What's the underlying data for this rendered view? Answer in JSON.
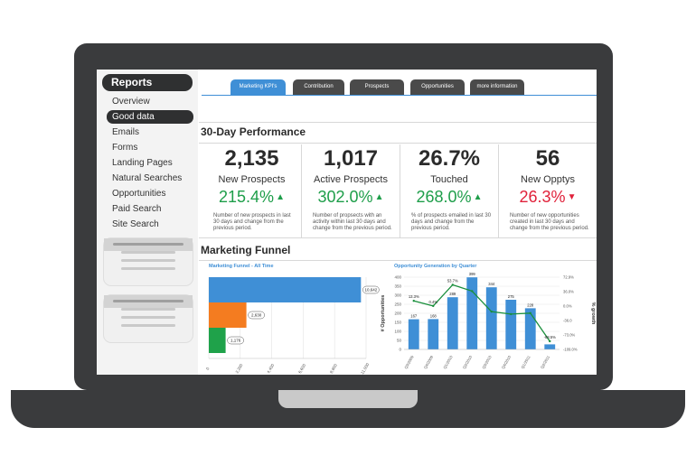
{
  "sidebar": {
    "title": "Reports",
    "items": [
      {
        "label": "Overview",
        "active": false
      },
      {
        "label": "Good data",
        "active": true
      },
      {
        "label": "Emails",
        "active": false
      },
      {
        "label": "Forms",
        "active": false
      },
      {
        "label": "Landing Pages",
        "active": false
      },
      {
        "label": "Natural Searches",
        "active": false
      },
      {
        "label": "Opportunities",
        "active": false
      },
      {
        "label": "Paid Search",
        "active": false
      },
      {
        "label": "Site Search",
        "active": false
      }
    ]
  },
  "tabs": [
    {
      "label": "Marketing KPI's",
      "active": true
    },
    {
      "label": "Contribution",
      "active": false
    },
    {
      "label": "Prospects",
      "active": false
    },
    {
      "label": "Opportunities",
      "active": false
    },
    {
      "label": "more information",
      "active": false
    }
  ],
  "performance": {
    "title": "30-Day Performance",
    "kpis": [
      {
        "value": "2,135",
        "label": "New Prospects",
        "change": "215.4%",
        "direction": "up",
        "description": "Number of new prospects in last 30 days and change from the previous period."
      },
      {
        "value": "1,017",
        "label": "Active Prospects",
        "change": "302.0%",
        "direction": "up",
        "description": "Number of propsects with an activity within last 30 days and change from the previous period."
      },
      {
        "value": "26.7%",
        "label": "Touched",
        "change": "268.0%",
        "direction": "up",
        "description": "% of prospects emailed in last 30 days and change from the previous period."
      },
      {
        "value": "56",
        "label": "New Opptys",
        "change": "26.3%",
        "direction": "down",
        "description": "Number of new opportunities created in last 30 days and change from the previous period."
      }
    ]
  },
  "funnel": {
    "title": "Marketing Funnel"
  },
  "colors": {
    "accent_blue": "#3f8fd6",
    "up_green": "#1e9e4a",
    "down_red": "#e0213a",
    "funnel_orange": "#f47c20",
    "funnel_green": "#1fa24a",
    "dark": "#2f3031"
  },
  "chart_data": [
    {
      "type": "bar",
      "orientation": "horizontal",
      "title": "Marketing Funnel - All Time",
      "values": [
        10642,
        2630,
        1176
      ],
      "value_labels": [
        "10,642",
        "2,630",
        "1,176"
      ],
      "colors": [
        "#3f8fd6",
        "#f47c20",
        "#1fa24a"
      ],
      "xlim": [
        0,
        11000
      ],
      "xticks": [
        "0",
        "2,200",
        "4,400",
        "6,600",
        "8,800",
        "11,000"
      ],
      "grid": true
    },
    {
      "type": "bar",
      "title": "Opportunity Generation by Quarter",
      "categories": [
        "Q3/2009",
        "Q4/2009",
        "Q1/2010",
        "Q2/2010",
        "Q3/2010",
        "Q4/2010",
        "Q1/2011",
        "Q2/2011"
      ],
      "ylabel": "# Opportunities",
      "y2label": "% growth",
      "ylim": [
        0,
        400
      ],
      "yticks": [
        "0",
        "50",
        "100",
        "150",
        "200",
        "250",
        "300",
        "350",
        "400"
      ],
      "y2lim": [
        -109,
        72.9
      ],
      "y2ticks": [
        "72.9%",
        "36.0%",
        "0.0%",
        "-36.0",
        "-73.0%",
        "-109.0%"
      ],
      "series": [
        {
          "kind": "bar",
          "values": [
            167,
            168,
            289,
            399,
            344,
            275,
            228,
            28
          ],
          "labels": [
            "167",
            "168",
            "289",
            "399",
            "344",
            "275",
            "228",
            ""
          ]
        },
        {
          "kind": "line",
          "values": [
            13.3,
            0.4,
            53.7,
            37.9,
            -13.9,
            -20.1,
            -17.6,
            -88.5
          ],
          "labels": [
            "13.3%",
            "0.4%",
            "53.7%",
            "",
            "",
            "",
            "",
            "-88.5%"
          ]
        }
      ],
      "grid": true
    }
  ]
}
